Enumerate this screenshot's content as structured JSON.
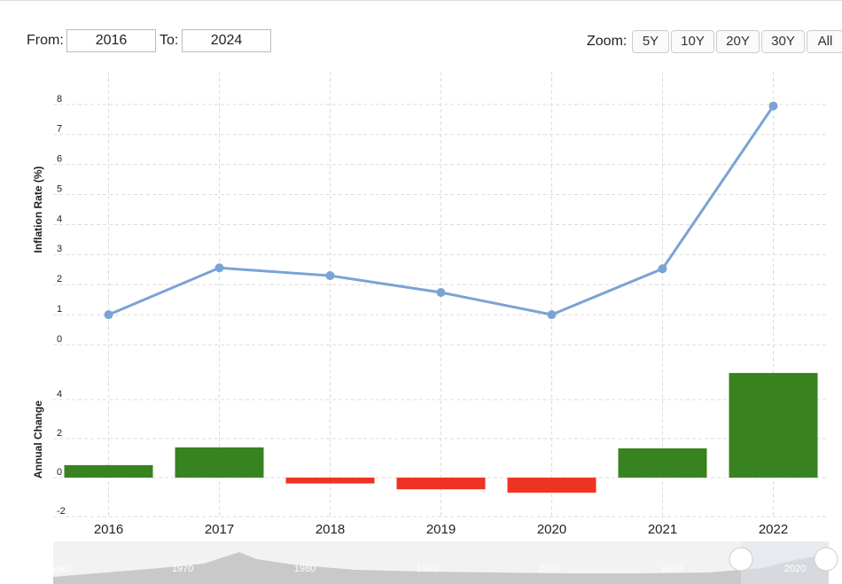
{
  "controls": {
    "from_label": "From:",
    "from": "2016",
    "to_label": "To:",
    "to": "2024",
    "zoom_label": "Zoom:",
    "zoom": [
      "5Y",
      "10Y",
      "20Y",
      "30Y",
      "All"
    ]
  },
  "chart_data": [
    {
      "type": "line",
      "y_label": "Inflation Rate (%)",
      "values": [
        1.0,
        2.56,
        2.3,
        1.74,
        1.0,
        2.53,
        7.95
      ],
      "color": "#7aa3d4",
      "ylim": [
        0,
        9
      ],
      "yticks": [
        0,
        1,
        2,
        3,
        4,
        5,
        6,
        7,
        8
      ],
      "grid": true
    },
    {
      "type": "bar",
      "y_label": "Annual Change",
      "categories": [
        "2016",
        "2017",
        "2018",
        "2019",
        "2020",
        "2021",
        "2022"
      ],
      "values": [
        0.64,
        1.55,
        -0.3,
        -0.6,
        -0.77,
        1.5,
        5.36
      ],
      "color": "#38821f",
      "negative_color": "#ee3322",
      "ylim": [
        -2,
        5.9
      ],
      "yticks": [
        -2,
        0,
        2,
        4
      ],
      "grid": true
    }
  ],
  "navigator": {
    "labels": [
      "1960",
      "1970",
      "1980",
      "1990",
      "2000",
      "2010",
      "2020"
    ]
  }
}
